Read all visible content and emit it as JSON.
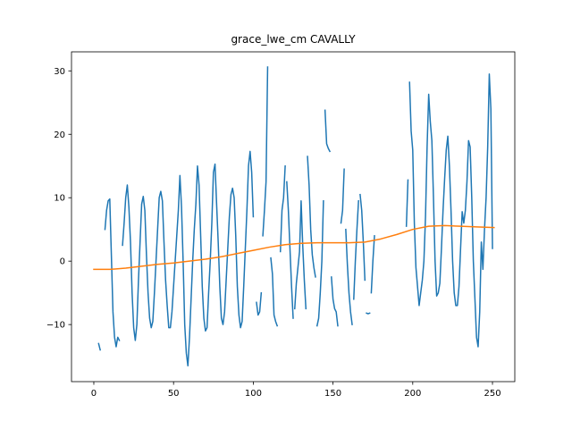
{
  "chart_data": {
    "type": "line",
    "title": "grace_lwe_cm CAVALLY",
    "xlabel": "",
    "ylabel": "",
    "xlim": [
      -14,
      264
    ],
    "ylim": [
      -19,
      33
    ],
    "xticks": [
      0,
      50,
      100,
      150,
      200,
      250
    ],
    "yticks": [
      -10,
      0,
      10,
      20,
      30
    ],
    "grid": false,
    "series": [
      {
        "color": "#1f77b4",
        "segments": [
          [
            [
              3,
              -13
            ],
            [
              4,
              -14
            ]
          ],
          [
            [
              7,
              5
            ],
            [
              8,
              8
            ],
            [
              9,
              9.5
            ],
            [
              10,
              9.8
            ],
            [
              11,
              1
            ],
            [
              12,
              -8
            ],
            [
              13,
              -12
            ],
            [
              14,
              -13.5
            ],
            [
              15,
              -12
            ],
            [
              16,
              -12.5
            ]
          ],
          [
            [
              18,
              2.5
            ],
            [
              19,
              6
            ],
            [
              20,
              10
            ],
            [
              21,
              12
            ],
            [
              22,
              8.5
            ],
            [
              23,
              3
            ],
            [
              24,
              -5
            ],
            [
              25,
              -10.5
            ],
            [
              26,
              -12.5
            ],
            [
              27,
              -10
            ],
            [
              28,
              -3
            ],
            [
              29,
              3
            ],
            [
              30,
              9
            ],
            [
              31,
              10.2
            ],
            [
              32,
              8
            ],
            [
              33,
              1
            ],
            [
              34,
              -5
            ],
            [
              35,
              -9
            ],
            [
              36,
              -10.5
            ],
            [
              37,
              -9.5
            ],
            [
              38,
              -5
            ],
            [
              39,
              0
            ],
            [
              40,
              5
            ],
            [
              41,
              10
            ],
            [
              42,
              11
            ],
            [
              43,
              9.5
            ],
            [
              44,
              3
            ],
            [
              45,
              -3
            ],
            [
              46,
              -7
            ],
            [
              47,
              -10.5
            ],
            [
              48,
              -10.5
            ],
            [
              49,
              -8
            ],
            [
              50,
              -4
            ],
            [
              51,
              0
            ],
            [
              52,
              4
            ],
            [
              53,
              8
            ],
            [
              54,
              13.5
            ],
            [
              55,
              8.5
            ],
            [
              56,
              0
            ],
            [
              57,
              -10
            ],
            [
              58,
              -14.5
            ],
            [
              59,
              -16.5
            ],
            [
              60,
              -12
            ],
            [
              61,
              -6
            ],
            [
              62,
              0
            ],
            [
              63,
              5
            ],
            [
              64,
              9
            ],
            [
              65,
              15
            ],
            [
              66,
              12
            ],
            [
              67,
              4
            ],
            [
              68,
              -4
            ],
            [
              69,
              -9
            ],
            [
              70,
              -11
            ],
            [
              71,
              -10.5
            ],
            [
              72,
              -5
            ],
            [
              73,
              0
            ],
            [
              74,
              6
            ],
            [
              75,
              14
            ],
            [
              76,
              15.3
            ],
            [
              77,
              9
            ],
            [
              78,
              3
            ],
            [
              79,
              -4
            ],
            [
              80,
              -9
            ],
            [
              81,
              -10
            ],
            [
              82,
              -8
            ],
            [
              83,
              -3
            ],
            [
              84,
              2
            ],
            [
              85,
              7
            ],
            [
              86,
              10.5
            ],
            [
              87,
              11.5
            ],
            [
              88,
              10
            ],
            [
              89,
              4
            ],
            [
              90,
              -4
            ],
            [
              91,
              -8.5
            ],
            [
              92,
              -10.5
            ],
            [
              93,
              -9.5
            ],
            [
              94,
              -4
            ],
            [
              95,
              2
            ],
            [
              96,
              8
            ],
            [
              97,
              15
            ],
            [
              98,
              17.3
            ],
            [
              99,
              14
            ],
            [
              100,
              7
            ]
          ],
          [
            [
              102,
              -6.5
            ],
            [
              103,
              -8.5
            ],
            [
              104,
              -8
            ],
            [
              105,
              -5
            ]
          ],
          [
            [
              106,
              4
            ],
            [
              107,
              8
            ],
            [
              108,
              12.5
            ],
            [
              109,
              30.6
            ]
          ],
          [
            [
              111,
              0.5
            ],
            [
              112,
              -2
            ],
            [
              113,
              -8.5
            ],
            [
              114,
              -9.5
            ],
            [
              115,
              -10.2
            ]
          ],
          [
            [
              117,
              1.5
            ],
            [
              118,
              8
            ],
            [
              119,
              10
            ],
            [
              120,
              15
            ]
          ],
          [
            [
              121,
              12.5
            ],
            [
              122,
              8
            ],
            [
              123,
              2
            ],
            [
              124,
              -4
            ],
            [
              125,
              -9
            ]
          ],
          [
            [
              126,
              -7.5
            ],
            [
              127,
              -3.5
            ],
            [
              128,
              -1
            ],
            [
              129,
              1.5
            ],
            [
              130,
              9.5
            ],
            [
              131,
              2.5
            ],
            [
              132,
              -3
            ],
            [
              133,
              -7.5
            ]
          ],
          [
            [
              134,
              16.5
            ],
            [
              135,
              12
            ],
            [
              136,
              5
            ],
            [
              137,
              1
            ],
            [
              138,
              -1
            ],
            [
              139,
              -2.5
            ]
          ],
          [
            [
              140,
              -10.2
            ],
            [
              141,
              -9
            ],
            [
              142,
              -5
            ],
            [
              143,
              0
            ],
            [
              144,
              9.5
            ]
          ],
          [
            [
              145,
              23.8
            ],
            [
              146,
              18.5
            ],
            [
              147,
              17.8
            ],
            [
              148,
              17.3
            ]
          ],
          [
            [
              149,
              -2.5
            ],
            [
              150,
              -6
            ],
            [
              151,
              -7.5
            ],
            [
              152,
              -8
            ],
            [
              153,
              -10.2
            ]
          ],
          [
            [
              155,
              6
            ],
            [
              156,
              8
            ],
            [
              157,
              14.5
            ]
          ],
          [
            [
              158,
              5
            ],
            [
              159,
              -0.5
            ],
            [
              160,
              -5
            ],
            [
              161,
              -8
            ],
            [
              162,
              -10
            ]
          ],
          [
            [
              163,
              -6
            ],
            [
              164,
              0
            ],
            [
              165,
              5
            ],
            [
              166,
              9.5
            ]
          ],
          [
            [
              167,
              10.5
            ],
            [
              168,
              8
            ],
            [
              169,
              3
            ],
            [
              170,
              -3
            ]
          ],
          [
            [
              171,
              -8.2
            ],
            [
              172,
              -8.3
            ],
            [
              173,
              -8.2
            ]
          ],
          [
            [
              174,
              -5
            ],
            [
              175,
              0
            ],
            [
              176,
              4
            ]
          ],
          [
            [
              196,
              5.5
            ],
            [
              197,
              12.8
            ]
          ],
          [
            [
              198,
              28.2
            ],
            [
              199,
              20.5
            ],
            [
              200,
              17.5
            ],
            [
              201,
              6
            ],
            [
              202,
              -1
            ],
            [
              203,
              -4
            ],
            [
              204,
              -7
            ],
            [
              205,
              -5
            ],
            [
              206,
              -3
            ],
            [
              207,
              0
            ],
            [
              208,
              7
            ],
            [
              209,
              18
            ],
            [
              210,
              26.3
            ],
            [
              211,
              22
            ],
            [
              212,
              19
            ],
            [
              213,
              10
            ],
            [
              214,
              0
            ],
            [
              215,
              -5.5
            ],
            [
              216,
              -5
            ],
            [
              217,
              -3.5
            ],
            [
              218,
              2
            ],
            [
              219,
              8
            ],
            [
              220,
              13
            ],
            [
              221,
              17.5
            ],
            [
              222,
              19.7
            ],
            [
              223,
              15
            ],
            [
              224,
              8
            ],
            [
              225,
              0
            ],
            [
              226,
              -5
            ],
            [
              227,
              -7
            ],
            [
              228,
              -7
            ],
            [
              229,
              -4
            ],
            [
              230,
              2
            ],
            [
              231,
              7.8
            ],
            [
              232,
              6
            ],
            [
              233,
              8
            ],
            [
              234,
              12.5
            ],
            [
              235,
              19
            ],
            [
              236,
              18
            ],
            [
              237,
              10
            ],
            [
              238,
              0
            ],
            [
              239,
              -6
            ],
            [
              240,
              -12
            ],
            [
              241,
              -13.5
            ],
            [
              242,
              -8
            ],
            [
              243,
              3
            ],
            [
              244,
              -1.3
            ],
            [
              245,
              5
            ],
            [
              246,
              10
            ],
            [
              247,
              18
            ],
            [
              248,
              29.5
            ],
            [
              249,
              24
            ],
            [
              250,
              2
            ]
          ]
        ]
      },
      {
        "color": "#ff7f0e",
        "segments": [
          [
            [
              0,
              -1.3
            ],
            [
              10,
              -1.3
            ],
            [
              20,
              -1.1
            ],
            [
              30,
              -0.8
            ],
            [
              40,
              -0.5
            ],
            [
              50,
              -0.3
            ],
            [
              60,
              0
            ],
            [
              70,
              0.3
            ],
            [
              80,
              0.7
            ],
            [
              90,
              1.2
            ],
            [
              100,
              1.7
            ],
            [
              110,
              2.2
            ],
            [
              120,
              2.6
            ],
            [
              130,
              2.8
            ],
            [
              140,
              2.9
            ],
            [
              150,
              2.9
            ],
            [
              160,
              2.9
            ],
            [
              170,
              3
            ],
            [
              180,
              3.5
            ],
            [
              190,
              4.2
            ],
            [
              200,
              5
            ],
            [
              210,
              5.5
            ],
            [
              220,
              5.6
            ],
            [
              230,
              5.5
            ],
            [
              240,
              5.4
            ],
            [
              251,
              5.3
            ]
          ]
        ]
      }
    ]
  }
}
